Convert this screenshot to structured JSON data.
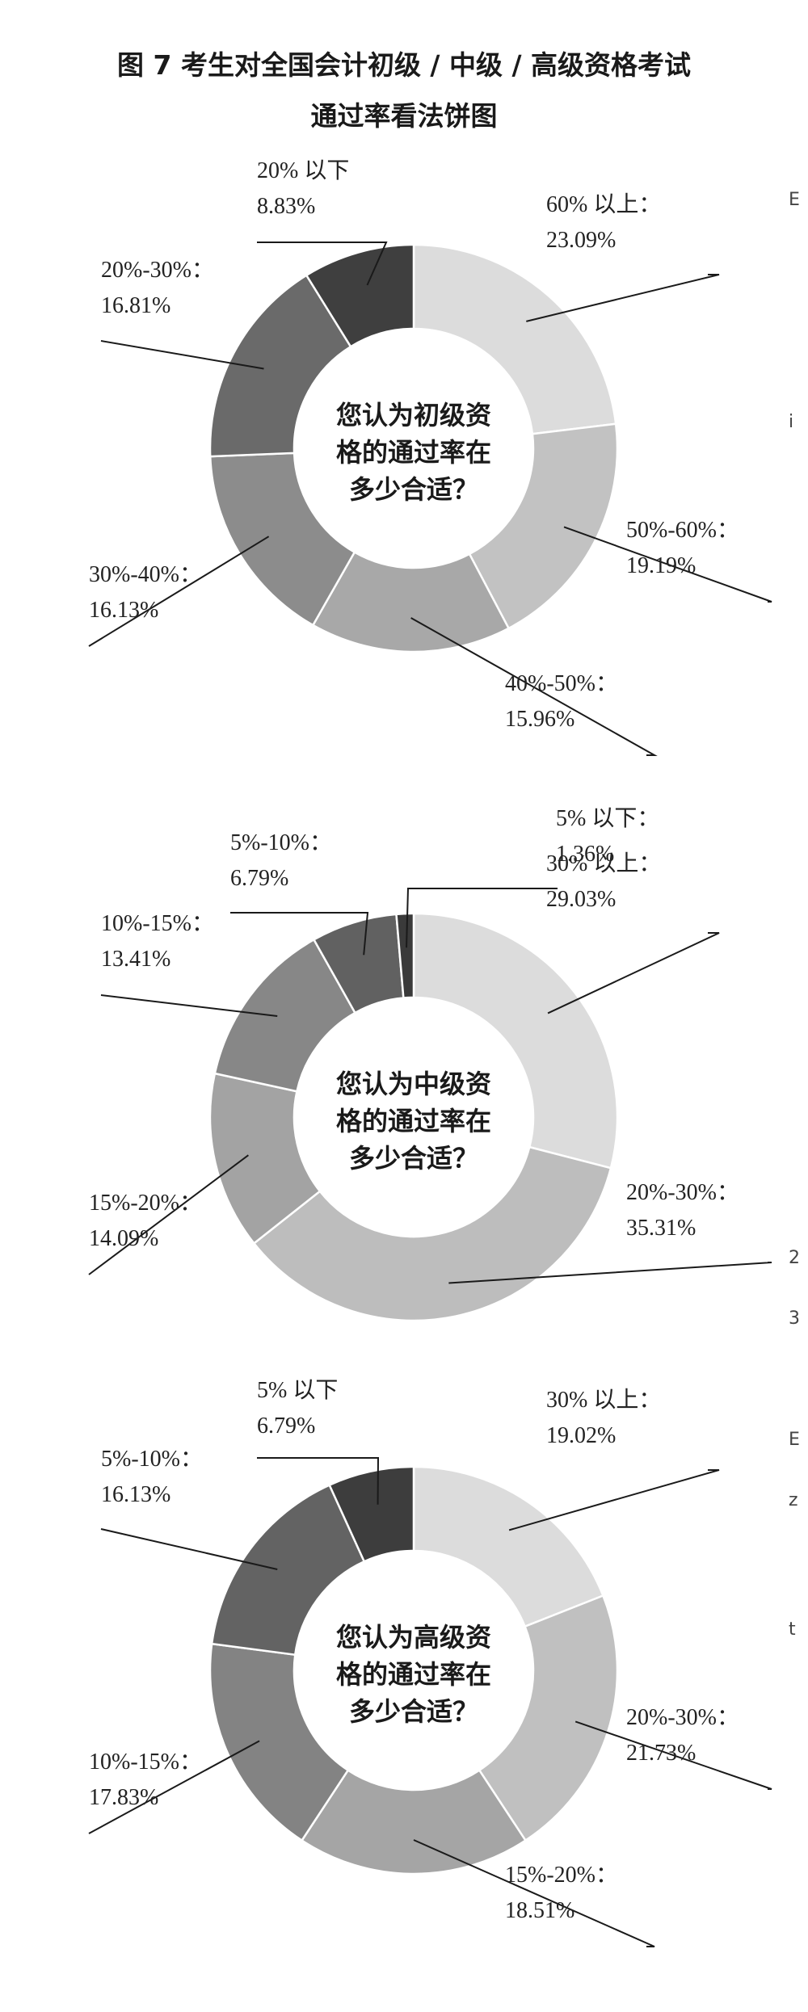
{
  "figure": {
    "title_line1": "图 7 考生对全国会计初级 / 中级 / 高级资格考试",
    "title_line2": "通过率看法饼图"
  },
  "edge_text": [
    "E",
    "i",
    "2",
    "3",
    "E",
    "z",
    "t"
  ],
  "colors": {
    "top": "#d9d9d9",
    "mid1": "#bbbbbb",
    "mid2": "#a6a6a6",
    "mid3": "#8f8f8f",
    "mid4": "#7a7a7a",
    "dark1": "#636363",
    "dark2": "#3d3d3d"
  },
  "chart_data": [
    {
      "type": "pie",
      "donut": true,
      "center_text": [
        "您认为初级资",
        "格的通过率在",
        "多少合适？"
      ],
      "slices": [
        {
          "name": "60% 以上：",
          "value": 23.09,
          "label": "23.09%",
          "color": "#dcdcdc"
        },
        {
          "name": "50%-60%：",
          "value": 19.19,
          "label": "19.19%",
          "color": "#c2c2c2"
        },
        {
          "name": "40%-50%：",
          "value": 15.96,
          "label": "15.96%",
          "color": "#a8a8a8"
        },
        {
          "name": "30%-40%：",
          "value": 16.13,
          "label": "16.13%",
          "color": "#8c8c8c"
        },
        {
          "name": "20%-30%：",
          "value": 16.81,
          "label": "16.81%",
          "color": "#6a6a6a"
        },
        {
          "name": "20% 以下",
          "value": 8.83,
          "label": "8.83%",
          "color": "#3f3f3f"
        }
      ]
    },
    {
      "type": "pie",
      "donut": true,
      "center_text": [
        "您认为中级资",
        "格的通过率在",
        "多少合适？"
      ],
      "slices": [
        {
          "name": "30% 以上：",
          "value": 29.03,
          "label": "29.03%",
          "color": "#dcdcdc"
        },
        {
          "name": "20%-30%：",
          "value": 35.31,
          "label": "35.31%",
          "color": "#bdbdbd"
        },
        {
          "name": "15%-20%：",
          "value": 14.09,
          "label": "14.09%",
          "color": "#a3a3a3"
        },
        {
          "name": "10%-15%：",
          "value": 13.41,
          "label": "13.41%",
          "color": "#878787"
        },
        {
          "name": "5%-10%：",
          "value": 6.79,
          "label": "6.79%",
          "color": "#616161"
        },
        {
          "name": "5% 以下：",
          "value": 1.36,
          "label": "1.36%",
          "color": "#3a3a3a"
        }
      ]
    },
    {
      "type": "pie",
      "donut": true,
      "center_text": [
        "您认为高级资",
        "格的通过率在",
        "多少合适？"
      ],
      "slices": [
        {
          "name": "30% 以上：",
          "value": 19.02,
          "label": "19.02%",
          "color": "#dcdcdc"
        },
        {
          "name": "20%-30%：",
          "value": 21.73,
          "label": "21.73%",
          "color": "#c0c0c0"
        },
        {
          "name": "15%-20%：",
          "value": 18.51,
          "label": "18.51%",
          "color": "#a5a5a5"
        },
        {
          "name": "10%-15%：",
          "value": 17.83,
          "label": "17.83%",
          "color": "#838383"
        },
        {
          "name": "5%-10%：",
          "value": 16.13,
          "label": "16.13%",
          "color": "#636363"
        },
        {
          "name": "5% 以下",
          "value": 6.79,
          "label": "6.79%",
          "color": "#3d3d3d"
        }
      ]
    }
  ]
}
